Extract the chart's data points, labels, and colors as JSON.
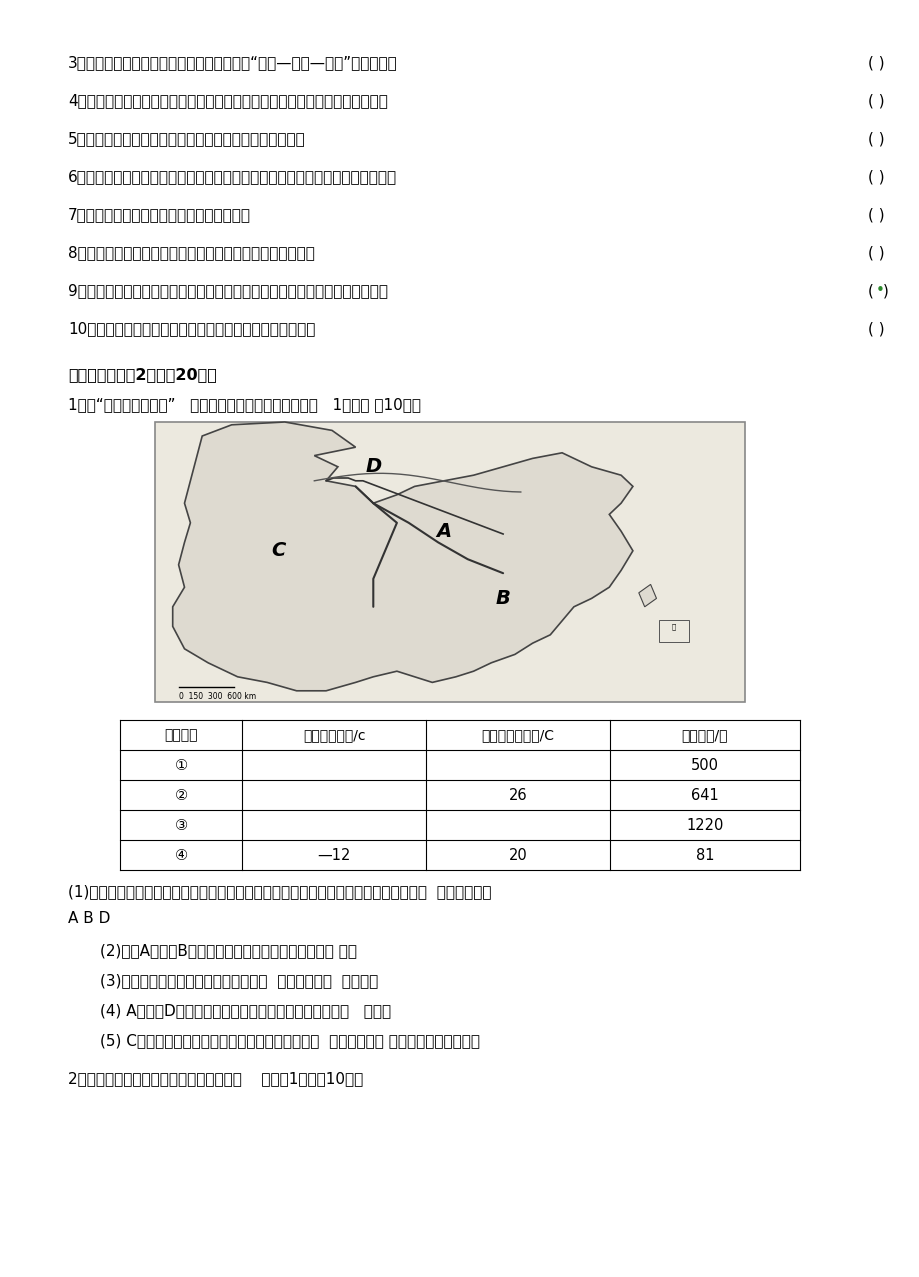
{
  "bg_color": "#ffffff",
  "text_color": "#000000",
  "questions": [
    {
      "num": "3",
      "text": "、台湾经济自第二次世界大战以后就已形成“进口—加工—出口”型的经济。",
      "bracket": "( )"
    },
    {
      "num": "4",
      "text": "、香港与澳门作为我国的特别行政区，与祖国内地一样，实行社会主义制度。",
      "bracket": "( )"
    },
    {
      "num": "5",
      "text": "、北京是「我国的政治、文化中心，也是国际交往中心。",
      "bracket": "( )"
    },
    {
      "num": "6",
      "text": "、终年降水少，不利于簮食作物的成熟，故新疆的小麦多从国内其他省区输入。",
      "bracket": "( )"
    },
    {
      "num": "7",
      "text": "、北方地区全部位于地势的第三级阶梯上。",
      "bracket": "( )"
    },
    {
      "num": "8",
      "text": "、内蒙古牧区温带草原牧场的著名畜种是三河马和三河牛。",
      "bracket": "( )"
    },
    {
      "num": "9",
      "text": "、台湾省东临太平洋，西隔台湾海峡与福建省相望，其中部有北回归线穿过。",
      "bracket": "dot"
    },
    {
      "num": "10",
      "text": "、青藏地区的主要自然特征是干战地区广，地面植被少。",
      "bracket": "( )"
    }
  ],
  "section3_title": "三、综合题（共2题，计20分）",
  "q1_header": "1、读“我国地理分区图”   及下表，按要求回答问题（每空   1分，， 共10分）",
  "table_headers": [
    "城市代号",
    "一月平均气温/c",
    "。七月平均气温/C",
    "年降水量/咐"
  ],
  "table_rows": [
    [
      "①",
      "",
      "",
      "500"
    ],
    [
      "②",
      "",
      "26",
      "641"
    ],
    [
      "③",
      "",
      "",
      "1220"
    ],
    [
      "④",
      "—12",
      "20",
      "81"
    ]
  ],
  "answers": [
    "(1)表中数据分别为我国四大地理区域四城市的气候资料，它们与图中对应的关系是（填  城市代号）：",
    "ABD_line",
    "(2)图中A地区与B地区分界线附近的山脉和河流分别是 、。",
    "(3)从青藏地区向东，农业生产活动从以  业为主变为以  业为主。",
    "(4) A地区与D地区之间的界线有一段大致与人为的古建筑   一致。",
    "(5) C地与其他地区比较，夏季气温最突出的特点是  ，形成这种气 候特征的根本原因是。"
  ],
  "q2_header": "2、读我国某省区地形图，回答下列问题。    （每空1分，共10分）"
}
